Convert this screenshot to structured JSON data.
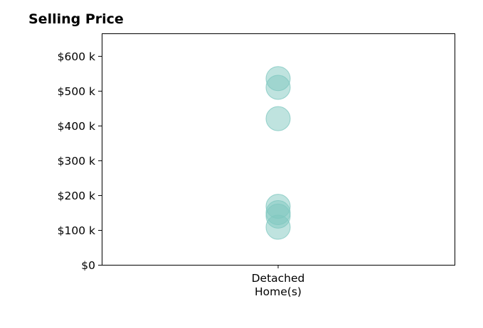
{
  "chart_data": {
    "type": "scatter",
    "title": "Selling Price",
    "xlabel": "",
    "ylabel": "",
    "categories": [
      "Detached\nHome(s)"
    ],
    "series": [
      {
        "category": "Detached\nHome(s)",
        "values": [
          535000,
          510000,
          420000,
          168000,
          150000,
          140000,
          108000
        ]
      }
    ],
    "ylim": [
      0,
      665000
    ],
    "yticks": [
      0,
      100000,
      200000,
      300000,
      400000,
      500000,
      600000
    ],
    "ytick_labels": [
      "$0",
      "$100 k",
      "$200 k",
      "$300 k",
      "$400 k",
      "$500 k",
      "$600 k"
    ],
    "marker_color": "#7fc8c0",
    "marker_alpha": 0.5,
    "grid": false,
    "legend": "none"
  }
}
